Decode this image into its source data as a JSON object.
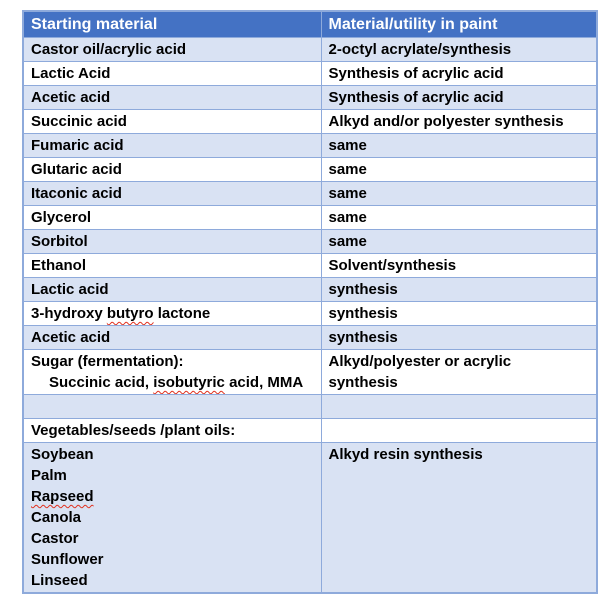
{
  "colors": {
    "header_bg": "#4472C4",
    "header_text": "#FFFFFF",
    "band_bg": "#D9E2F3",
    "border": "#8EAADB",
    "body_text": "#000000",
    "squiggle": "#E0301E"
  },
  "table": {
    "header": [
      "Starting material",
      "Material/utility in paint"
    ],
    "rows": [
      {
        "banded": true,
        "cells": [
          {
            "lines": [
              {
                "segments": [
                  {
                    "text": "Castor oil/acrylic acid"
                  }
                ]
              }
            ]
          },
          {
            "lines": [
              {
                "segments": [
                  {
                    "text": "2-octyl acrylate/synthesis"
                  }
                ]
              }
            ]
          }
        ]
      },
      {
        "banded": false,
        "cells": [
          {
            "lines": [
              {
                "segments": [
                  {
                    "text": "Lactic Acid"
                  }
                ]
              }
            ]
          },
          {
            "lines": [
              {
                "segments": [
                  {
                    "text": "Synthesis of acrylic acid"
                  }
                ]
              }
            ]
          }
        ]
      },
      {
        "banded": true,
        "cells": [
          {
            "lines": [
              {
                "segments": [
                  {
                    "text": "Acetic acid"
                  }
                ]
              }
            ]
          },
          {
            "lines": [
              {
                "segments": [
                  {
                    "text": "Synthesis of acrylic acid"
                  }
                ]
              }
            ]
          }
        ]
      },
      {
        "banded": false,
        "cells": [
          {
            "lines": [
              {
                "segments": [
                  {
                    "text": "Succinic acid"
                  }
                ]
              }
            ]
          },
          {
            "lines": [
              {
                "segments": [
                  {
                    "text": "Alkyd and/or polyester synthesis"
                  }
                ]
              }
            ]
          }
        ]
      },
      {
        "banded": true,
        "cells": [
          {
            "lines": [
              {
                "segments": [
                  {
                    "text": "Fumaric acid"
                  }
                ]
              }
            ]
          },
          {
            "lines": [
              {
                "segments": [
                  {
                    "text": "same"
                  }
                ]
              }
            ]
          }
        ]
      },
      {
        "banded": false,
        "cells": [
          {
            "lines": [
              {
                "segments": [
                  {
                    "text": "Glutaric acid"
                  }
                ]
              }
            ]
          },
          {
            "lines": [
              {
                "segments": [
                  {
                    "text": "same"
                  }
                ]
              }
            ]
          }
        ]
      },
      {
        "banded": true,
        "cells": [
          {
            "lines": [
              {
                "segments": [
                  {
                    "text": "Itaconic acid"
                  }
                ]
              }
            ]
          },
          {
            "lines": [
              {
                "segments": [
                  {
                    "text": "same"
                  }
                ]
              }
            ]
          }
        ]
      },
      {
        "banded": false,
        "cells": [
          {
            "lines": [
              {
                "segments": [
                  {
                    "text": "Glycerol"
                  }
                ]
              }
            ]
          },
          {
            "lines": [
              {
                "segments": [
                  {
                    "text": "same"
                  }
                ]
              }
            ]
          }
        ]
      },
      {
        "banded": true,
        "cells": [
          {
            "lines": [
              {
                "segments": [
                  {
                    "text": "Sorbitol"
                  }
                ]
              }
            ]
          },
          {
            "lines": [
              {
                "segments": [
                  {
                    "text": "same"
                  }
                ]
              }
            ]
          }
        ]
      },
      {
        "banded": false,
        "cells": [
          {
            "lines": [
              {
                "segments": [
                  {
                    "text": "Ethanol"
                  }
                ]
              }
            ]
          },
          {
            "lines": [
              {
                "segments": [
                  {
                    "text": "Solvent/synthesis"
                  }
                ]
              }
            ]
          }
        ]
      },
      {
        "banded": true,
        "cells": [
          {
            "lines": [
              {
                "segments": [
                  {
                    "text": "Lactic acid"
                  }
                ]
              }
            ]
          },
          {
            "lines": [
              {
                "segments": [
                  {
                    "text": "synthesis"
                  }
                ]
              }
            ]
          }
        ]
      },
      {
        "banded": false,
        "cells": [
          {
            "lines": [
              {
                "segments": [
                  {
                    "text": "3-hydroxy "
                  },
                  {
                    "text": "butyro",
                    "misspelled": true
                  },
                  {
                    "text": " lactone"
                  }
                ]
              }
            ]
          },
          {
            "lines": [
              {
                "segments": [
                  {
                    "text": "synthesis"
                  }
                ]
              }
            ]
          }
        ]
      },
      {
        "banded": true,
        "cells": [
          {
            "lines": [
              {
                "segments": [
                  {
                    "text": "Acetic acid"
                  }
                ]
              }
            ]
          },
          {
            "lines": [
              {
                "segments": [
                  {
                    "text": "synthesis"
                  }
                ]
              }
            ]
          }
        ]
      },
      {
        "banded": false,
        "cells": [
          {
            "lines": [
              {
                "segments": [
                  {
                    "text": "Sugar (fermentation):"
                  }
                ]
              },
              {
                "indent": true,
                "segments": [
                  {
                    "text": "Succinic acid, "
                  },
                  {
                    "text": "isobutyric",
                    "misspelled": true
                  },
                  {
                    "text": " acid, MMA"
                  }
                ]
              }
            ]
          },
          {
            "lines": [
              {
                "segments": [
                  {
                    "text": "Alkyd/polyester or acrylic"
                  }
                ]
              },
              {
                "segments": [
                  {
                    "text": "synthesis"
                  }
                ]
              }
            ]
          }
        ]
      },
      {
        "banded": true,
        "cells": [
          {
            "lines": []
          },
          {
            "lines": []
          }
        ]
      },
      {
        "banded": false,
        "cells": [
          {
            "lines": [
              {
                "segments": [
                  {
                    "text": "Vegetables/seeds /plant oils:"
                  }
                ]
              }
            ]
          },
          {
            "lines": []
          }
        ]
      },
      {
        "banded": true,
        "cells": [
          {
            "lines": [
              {
                "segments": [
                  {
                    "text": "Soybean"
                  }
                ]
              },
              {
                "segments": [
                  {
                    "text": "Palm"
                  }
                ]
              },
              {
                "segments": [
                  {
                    "text": "Rapseed",
                    "misspelled": true
                  }
                ]
              },
              {
                "segments": [
                  {
                    "text": "Canola"
                  }
                ]
              },
              {
                "segments": [
                  {
                    "text": "Castor"
                  }
                ]
              },
              {
                "segments": [
                  {
                    "text": "Sunflower"
                  }
                ]
              },
              {
                "segments": [
                  {
                    "text": "Linseed"
                  }
                ]
              }
            ]
          },
          {
            "lines": [
              {
                "segments": [
                  {
                    "text": "Alkyd resin synthesis"
                  }
                ]
              }
            ]
          }
        ]
      }
    ]
  }
}
